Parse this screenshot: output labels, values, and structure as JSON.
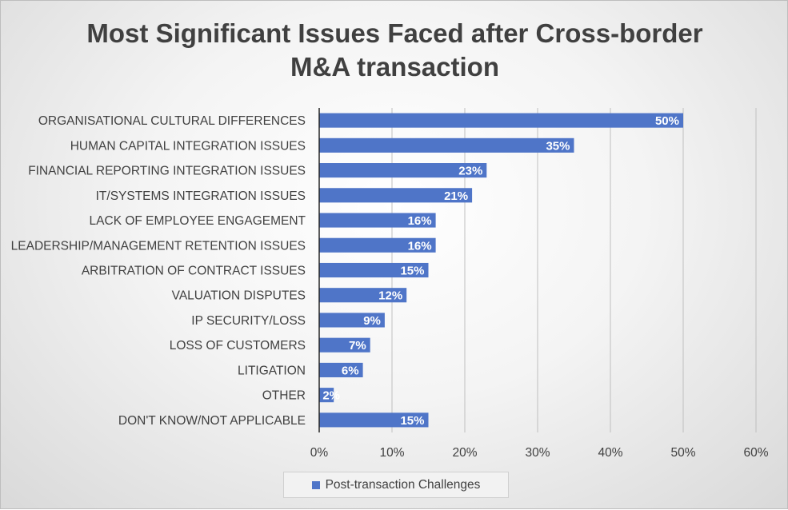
{
  "chart_data": {
    "type": "bar",
    "orientation": "horizontal",
    "title": [
      "Most Significant Issues Faced after Cross-border",
      "M&A transaction"
    ],
    "categories": [
      "ORGANISATIONAL CULTURAL DIFFERENCES",
      "HUMAN CAPITAL INTEGRATION ISSUES",
      "FINANCIAL REPORTING INTEGRATION ISSUES",
      "IT/SYSTEMS INTEGRATION ISSUES",
      "LACK OF EMPLOYEE ENGAGEMENT",
      "LEADERSHIP/MANAGEMENT RETENTION ISSUES",
      "ARBITRATION OF CONTRACT ISSUES",
      "VALUATION DISPUTES",
      "IP SECURITY/LOSS",
      "LOSS OF CUSTOMERS",
      "LITIGATION",
      "OTHER",
      "DON'T KNOW/NOT APPLICABLE"
    ],
    "series": [
      {
        "name": "Post-transaction Challenges",
        "values": [
          50,
          35,
          23,
          21,
          16,
          16,
          15,
          12,
          9,
          7,
          6,
          2,
          15
        ],
        "labels": [
          "50%",
          "35%",
          "23%",
          "21%",
          "16%",
          "16%",
          "15%",
          "12%",
          "9%",
          "7%",
          "6%",
          "2%",
          "15%"
        ],
        "color": "#4f75c8"
      }
    ],
    "xlim": [
      0,
      60
    ],
    "xticks": [
      0,
      10,
      20,
      30,
      40,
      50,
      60
    ],
    "xtick_labels": [
      "0%",
      "10%",
      "20%",
      "30%",
      "40%",
      "50%",
      "60%"
    ],
    "grid": true,
    "legend": "bottom",
    "gridline_color": "#bfbfbf",
    "axis_color": "#262626"
  }
}
